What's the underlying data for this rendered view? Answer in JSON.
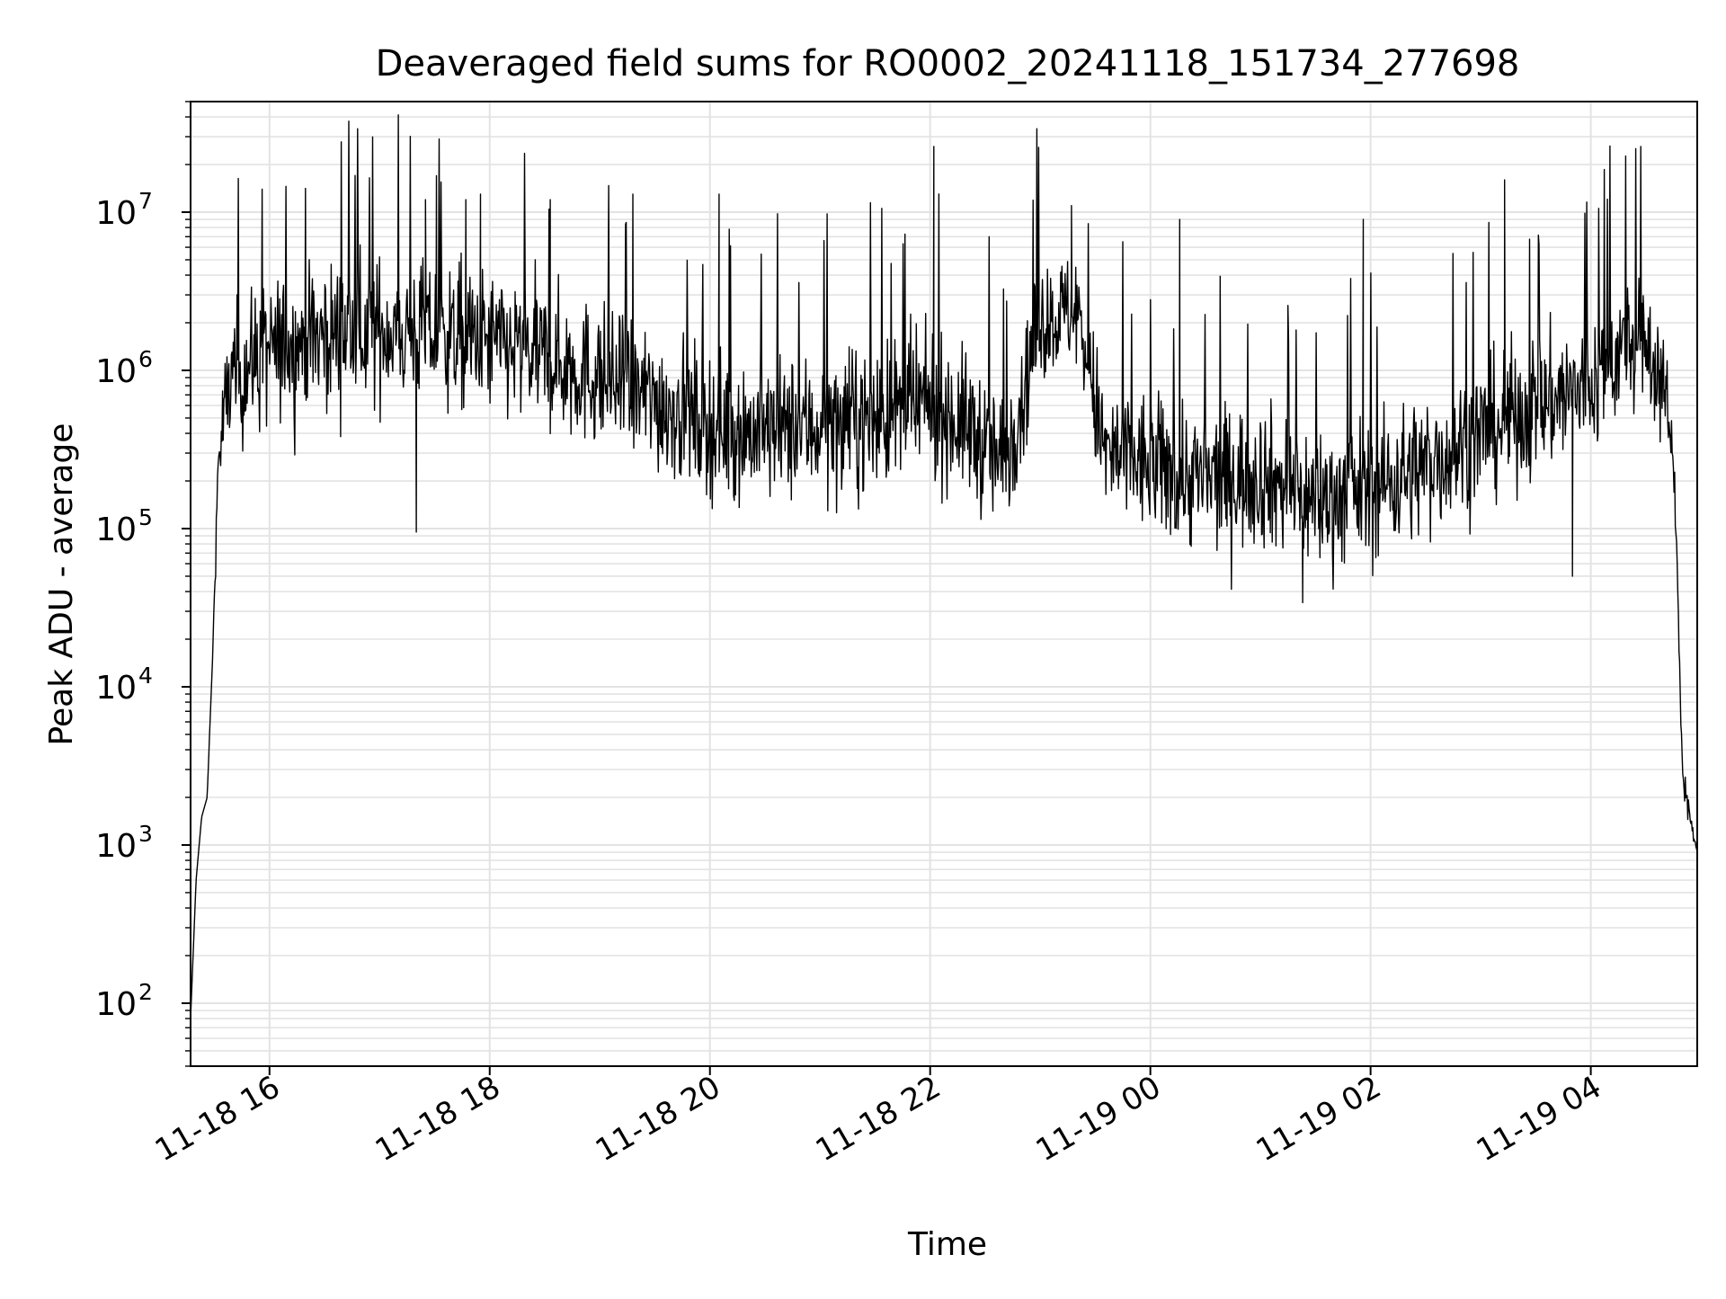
{
  "chart_data": {
    "type": "line",
    "title": "Deaveraged field sums for RO0002_20241118_151734_277698",
    "xlabel": "Time",
    "ylabel": "Peak ADU - average",
    "x_axis_type": "datetime",
    "x_range": [
      "2024-11-18 15:17",
      "2024-11-19 04:58"
    ],
    "y_scale": "log",
    "y_range": [
      40,
      50000000
    ],
    "x_ticks": [
      {
        "value": "2024-11-18 16:00",
        "label": "11-18 16"
      },
      {
        "value": "2024-11-18 18:00",
        "label": "11-18 18"
      },
      {
        "value": "2024-11-18 20:00",
        "label": "11-18 20"
      },
      {
        "value": "2024-11-18 22:00",
        "label": "11-18 22"
      },
      {
        "value": "2024-11-19 00:00",
        "label": "11-19 00"
      },
      {
        "value": "2024-11-19 02:00",
        "label": "11-19 02"
      },
      {
        "value": "2024-11-19 04:00",
        "label": "11-19 04"
      }
    ],
    "y_ticks": [
      {
        "value": 100,
        "base": "10",
        "exp": "2"
      },
      {
        "value": 1000,
        "base": "10",
        "exp": "3"
      },
      {
        "value": 10000,
        "base": "10",
        "exp": "4"
      },
      {
        "value": 100000,
        "base": "10",
        "exp": "5"
      },
      {
        "value": 1000000,
        "base": "10",
        "exp": "6"
      },
      {
        "value": 10000000,
        "base": "10",
        "exp": "7"
      }
    ],
    "grid": "major and minor",
    "line_color": "#000000",
    "grid_color": "#e3e3e3",
    "series": [
      {
        "x": [
          "2024-11-18 15:17",
          "2024-11-18 15:20",
          "2024-11-18 15:23",
          "2024-11-18 15:26",
          "2024-11-18 15:29",
          "2024-11-18 15:32",
          "2024-11-18 15:35",
          "2024-11-18 15:38",
          "2024-11-18 15:41",
          "2024-11-18 15:45",
          "2024-11-18 15:50",
          "2024-11-18 16:00",
          "2024-11-18 16:15",
          "2024-11-18 16:30",
          "2024-11-18 17:00",
          "2024-11-18 17:30",
          "2024-11-18 18:00",
          "2024-11-18 18:30",
          "2024-11-18 19:00",
          "2024-11-18 19:30",
          "2024-11-18 20:00",
          "2024-11-18 20:30",
          "2024-11-18 21:00",
          "2024-11-18 21:30",
          "2024-11-18 22:00",
          "2024-11-18 22:20",
          "2024-11-18 22:40",
          "2024-11-18 23:00",
          "2024-11-18 23:20",
          "2024-11-18 23:35",
          "2024-11-19 00:00",
          "2024-11-19 00:30",
          "2024-11-19 01:00",
          "2024-11-19 01:30",
          "2024-11-19 02:00",
          "2024-11-19 02:30",
          "2024-11-19 03:00",
          "2024-11-19 03:30",
          "2024-11-19 04:00",
          "2024-11-19 04:20",
          "2024-11-19 04:35",
          "2024-11-19 04:42",
          "2024-11-19 04:46",
          "2024-11-19 04:50",
          "2024-11-19 04:54",
          "2024-11-19 04:58"
        ],
        "y": [
          80,
          600,
          1500,
          2000,
          15000,
          250000,
          500000,
          800000,
          900000,
          1000000,
          1100000,
          1300000,
          1500000,
          1700000,
          1800000,
          1700000,
          1500000,
          1200000,
          900000,
          650000,
          450000,
          400000,
          450000,
          500000,
          600000,
          450000,
          250000,
          2000000,
          2500000,
          300000,
          250000,
          200000,
          220000,
          150000,
          180000,
          250000,
          400000,
          600000,
          800000,
          1500000,
          1200000,
          600000,
          150000,
          3000,
          1500,
          900
        ],
        "variation": [
          0,
          0,
          0,
          0,
          0,
          0.5,
          0.8,
          0.9,
          1.0,
          1.0,
          1.0,
          1.0,
          1.0,
          1.0,
          1.0,
          1.0,
          1.0,
          1.0,
          1.0,
          1.0,
          1.0,
          1.0,
          1.0,
          1.0,
          1.0,
          1.0,
          1.0,
          0.8,
          0.8,
          1.0,
          1.0,
          1.0,
          1.0,
          1.0,
          1.0,
          1.0,
          1.0,
          1.0,
          1.0,
          0.9,
          0.9,
          0.6,
          0.3,
          0.3,
          0.2,
          0
        ]
      }
    ],
    "spikes": [
      {
        "x": "2024-11-18 17:25",
        "y": 12000000
      },
      {
        "x": "2024-11-18 17:31",
        "y": 17000000
      },
      {
        "x": "2024-11-18 17:47",
        "y": 12000000
      },
      {
        "x": "2024-11-18 17:55",
        "y": 13000000
      },
      {
        "x": "2024-11-18 18:33",
        "y": 12000000
      },
      {
        "x": "2024-11-18 19:18",
        "y": 13000000
      },
      {
        "x": "2024-11-18 20:05",
        "y": 13000000
      },
      {
        "x": "2024-11-18 22:02",
        "y": 26000000
      },
      {
        "x": "2024-11-18 23:17",
        "y": 11000000
      },
      {
        "x": "2024-11-19 00:16",
        "y": 9000000
      },
      {
        "x": "2024-11-19 01:56",
        "y": 9000000
      },
      {
        "x": "2024-11-19 03:13",
        "y": 16000000
      },
      {
        "x": "2024-11-18 17:20",
        "y": 95000
      },
      {
        "x": "2024-11-19 01:23",
        "y": 34000
      },
      {
        "x": "2024-11-19 03:50",
        "y": 50000
      }
    ]
  }
}
